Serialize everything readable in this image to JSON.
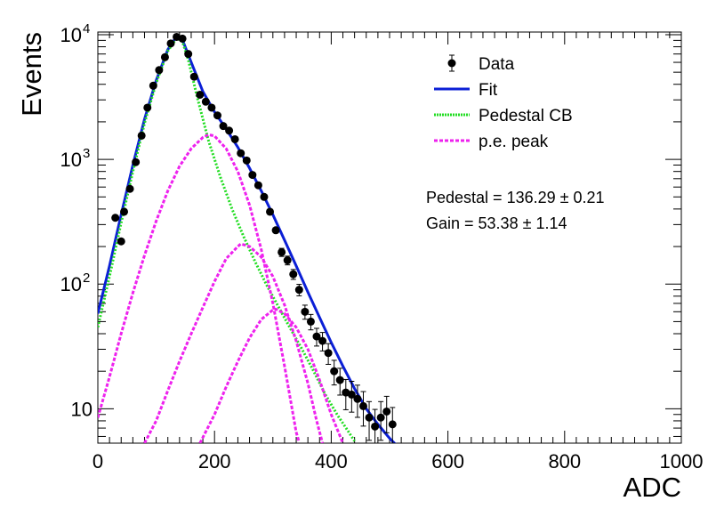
{
  "chart_data": {
    "type": "scatter",
    "xlabel": "ADC",
    "ylabel": "Events",
    "x_range": [
      0,
      1000
    ],
    "y_range": [
      5.3,
      10500
    ],
    "y_scale": "log",
    "x_ticks": [
      0,
      200,
      400,
      600,
      800,
      1000
    ],
    "y_tick_labels": [
      {
        "value": 10,
        "base": "10",
        "exp": ""
      },
      {
        "value": 100,
        "base": "10",
        "exp": "2"
      },
      {
        "value": 1000,
        "base": "10",
        "exp": "3"
      },
      {
        "value": 10000,
        "base": "10",
        "exp": "4"
      }
    ],
    "legend": [
      {
        "label": "Data",
        "style": "marker"
      },
      {
        "label": "Fit",
        "style": "solid",
        "color": "#0b1fd6"
      },
      {
        "label": "Pedestal CB",
        "style": "dotted",
        "color": "#22dd22"
      },
      {
        "label": "p.e. peak",
        "style": "dashed",
        "color": "#ee22ee"
      }
    ],
    "annotations": [
      {
        "name": "pedestal",
        "text": "Pedestal = 136.29 ± 0.21"
      },
      {
        "name": "gain",
        "text": "Gain = 53.38 ± 1.14"
      }
    ],
    "series": [
      {
        "name": "Data",
        "color": "#000000",
        "points": [
          [
            30,
            340
          ],
          [
            40,
            220
          ],
          [
            45,
            380
          ],
          [
            55,
            580
          ],
          [
            65,
            950
          ],
          [
            75,
            1550
          ],
          [
            85,
            2600
          ],
          [
            95,
            3900
          ],
          [
            105,
            5200
          ],
          [
            115,
            6600
          ],
          [
            125,
            8500
          ],
          [
            135,
            9600
          ],
          [
            145,
            9300
          ],
          [
            155,
            7000
          ],
          [
            165,
            4600
          ],
          [
            175,
            3300
          ],
          [
            185,
            2900
          ],
          [
            195,
            2600
          ],
          [
            205,
            2250
          ],
          [
            215,
            1850
          ],
          [
            225,
            1700
          ],
          [
            235,
            1450
          ],
          [
            245,
            1120
          ],
          [
            255,
            980
          ],
          [
            265,
            750
          ],
          [
            275,
            620
          ],
          [
            285,
            500
          ],
          [
            295,
            380
          ],
          [
            305,
            270
          ],
          [
            315,
            180
          ],
          [
            325,
            155
          ],
          [
            335,
            120
          ],
          [
            345,
            90
          ],
          [
            355,
            60
          ],
          [
            365,
            50
          ],
          [
            375,
            38
          ],
          [
            385,
            35
          ],
          [
            395,
            28
          ],
          [
            405,
            20
          ],
          [
            415,
            17
          ],
          [
            425,
            13.5
          ],
          [
            435,
            13
          ],
          [
            445,
            12
          ],
          [
            455,
            10.5
          ],
          [
            465,
            8.5
          ],
          [
            475,
            7.2
          ],
          [
            485,
            8.5
          ],
          [
            495,
            9.5
          ],
          [
            505,
            7.5
          ]
        ]
      },
      {
        "name": "Fit",
        "color": "#0b1fd6",
        "points": [
          [
            0,
            58
          ],
          [
            20,
            140
          ],
          [
            40,
            360
          ],
          [
            60,
            900
          ],
          [
            80,
            2100
          ],
          [
            100,
            4300
          ],
          [
            120,
            7600
          ],
          [
            135,
            9700
          ],
          [
            145,
            9100
          ],
          [
            160,
            6000
          ],
          [
            180,
            3500
          ],
          [
            200,
            2400
          ],
          [
            220,
            1750
          ],
          [
            240,
            1250
          ],
          [
            260,
            850
          ],
          [
            280,
            560
          ],
          [
            300,
            360
          ],
          [
            320,
            225
          ],
          [
            340,
            140
          ],
          [
            360,
            86
          ],
          [
            380,
            54
          ],
          [
            400,
            34
          ],
          [
            420,
            22
          ],
          [
            440,
            14.5
          ],
          [
            460,
            10
          ],
          [
            480,
            7.5
          ],
          [
            500,
            5.8
          ],
          [
            510,
            5.2
          ]
        ]
      },
      {
        "name": "Pedestal CB",
        "color": "#22dd22",
        "points": [
          [
            0,
            45
          ],
          [
            20,
            115
          ],
          [
            40,
            310
          ],
          [
            60,
            800
          ],
          [
            80,
            1950
          ],
          [
            100,
            4100
          ],
          [
            120,
            7400
          ],
          [
            135,
            9400
          ],
          [
            145,
            8800
          ],
          [
            155,
            6300
          ],
          [
            170,
            3200
          ],
          [
            190,
            1400
          ],
          [
            210,
            720
          ],
          [
            230,
            400
          ],
          [
            250,
            240
          ],
          [
            270,
            150
          ],
          [
            290,
            97
          ],
          [
            310,
            65
          ],
          [
            330,
            44
          ],
          [
            350,
            30
          ],
          [
            370,
            20
          ],
          [
            390,
            13
          ],
          [
            410,
            9
          ],
          [
            430,
            6.5
          ],
          [
            440,
            5.5
          ]
        ]
      },
      {
        "name": "p.e. peak 1",
        "color": "#ee22ee",
        "points": [
          [
            0,
            8.5
          ],
          [
            20,
            18
          ],
          [
            40,
            40
          ],
          [
            60,
            85
          ],
          [
            80,
            170
          ],
          [
            100,
            320
          ],
          [
            120,
            560
          ],
          [
            140,
            880
          ],
          [
            160,
            1220
          ],
          [
            180,
            1500
          ],
          [
            190,
            1580
          ],
          [
            200,
            1540
          ],
          [
            220,
            1220
          ],
          [
            240,
            800
          ],
          [
            260,
            430
          ],
          [
            280,
            190
          ],
          [
            300,
            70
          ],
          [
            320,
            22
          ],
          [
            340,
            6.5
          ],
          [
            345,
            5.4
          ]
        ]
      },
      {
        "name": "p.e. peak 2",
        "color": "#ee22ee",
        "points": [
          [
            80,
            5.3
          ],
          [
            100,
            8
          ],
          [
            120,
            14
          ],
          [
            140,
            24
          ],
          [
            160,
            40
          ],
          [
            180,
            65
          ],
          [
            200,
            105
          ],
          [
            220,
            160
          ],
          [
            240,
            200
          ],
          [
            245,
            210
          ],
          [
            260,
            200
          ],
          [
            280,
            165
          ],
          [
            300,
            115
          ],
          [
            320,
            68
          ],
          [
            340,
            35
          ],
          [
            360,
            16
          ],
          [
            375,
            8
          ],
          [
            385,
            5.3
          ]
        ]
      },
      {
        "name": "p.e. peak 3",
        "color": "#ee22ee",
        "points": [
          [
            175,
            5.3
          ],
          [
            200,
            9
          ],
          [
            220,
            15
          ],
          [
            240,
            24
          ],
          [
            260,
            37
          ],
          [
            280,
            52
          ],
          [
            300,
            62
          ],
          [
            305,
            63
          ],
          [
            320,
            58
          ],
          [
            340,
            45
          ],
          [
            360,
            30
          ],
          [
            380,
            17
          ],
          [
            400,
            9
          ],
          [
            420,
            5.3
          ]
        ]
      }
    ]
  }
}
